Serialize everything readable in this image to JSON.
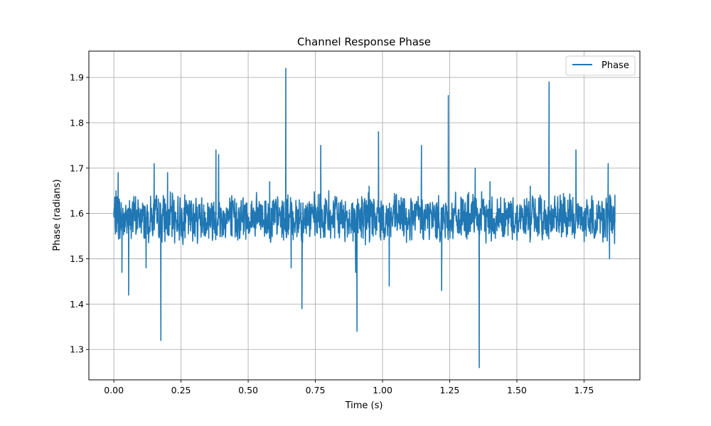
{
  "chart_data": {
    "type": "line",
    "title": "Channel Response Phase",
    "xlabel": "Time (s)",
    "ylabel": "Phase (radians)",
    "xlim": [
      -0.093,
      1.958
    ],
    "ylim": [
      1.233,
      1.958
    ],
    "x_ticks": [
      0.0,
      0.25,
      0.5,
      0.75,
      1.0,
      1.25,
      1.5,
      1.75
    ],
    "x_tick_labels": [
      "0.00",
      "0.25",
      "0.50",
      "0.75",
      "1.00",
      "1.25",
      "1.50",
      "1.75"
    ],
    "y_ticks": [
      1.3,
      1.4,
      1.5,
      1.6,
      1.7,
      1.8,
      1.9
    ],
    "y_tick_labels": [
      "1.3",
      "1.4",
      "1.5",
      "1.6",
      "1.7",
      "1.8",
      "1.9"
    ],
    "grid": true,
    "legend": {
      "position": "top-right",
      "entries": [
        "Phase"
      ]
    },
    "colors": {
      "series": "#1f77b4"
    },
    "series": [
      {
        "name": "Phase",
        "baseline": 1.59,
        "x": [
          0.0,
          0.008,
          0.016,
          0.02,
          0.03,
          0.04,
          0.055,
          0.07,
          0.09,
          0.105,
          0.12,
          0.135,
          0.15,
          0.165,
          0.175,
          0.2,
          0.25,
          0.3,
          0.32,
          0.38,
          0.385,
          0.39,
          0.44,
          0.45,
          0.5,
          0.55,
          0.58,
          0.6,
          0.64,
          0.65,
          0.66,
          0.69,
          0.7,
          0.72,
          0.75,
          0.77,
          0.78,
          0.8,
          0.9,
          0.905,
          0.93,
          0.95,
          0.965,
          0.985,
          1.0,
          1.025,
          1.05,
          1.1,
          1.145,
          1.15,
          1.2,
          1.22,
          1.245,
          1.25,
          1.3,
          1.345,
          1.36,
          1.38,
          1.4,
          1.45,
          1.5,
          1.55,
          1.6,
          1.62,
          1.65,
          1.7,
          1.72,
          1.75,
          1.8,
          1.84,
          1.845,
          1.865
        ],
        "y": [
          1.6,
          1.65,
          1.69,
          1.6,
          1.47,
          1.56,
          1.42,
          1.59,
          1.63,
          1.6,
          1.48,
          1.58,
          1.71,
          1.59,
          1.32,
          1.69,
          1.55,
          1.6,
          1.62,
          1.74,
          1.58,
          1.73,
          1.55,
          1.63,
          1.59,
          1.6,
          1.67,
          1.58,
          1.92,
          1.6,
          1.48,
          1.63,
          1.39,
          1.58,
          1.6,
          1.75,
          1.58,
          1.65,
          1.47,
          1.34,
          1.59,
          1.66,
          1.55,
          1.78,
          1.58,
          1.44,
          1.64,
          1.59,
          1.75,
          1.6,
          1.55,
          1.43,
          1.86,
          1.58,
          1.6,
          1.7,
          1.26,
          1.59,
          1.67,
          1.6,
          1.55,
          1.66,
          1.6,
          1.89,
          1.58,
          1.59,
          1.74,
          1.56,
          1.6,
          1.71,
          1.5,
          1.58
        ]
      }
    ]
  }
}
